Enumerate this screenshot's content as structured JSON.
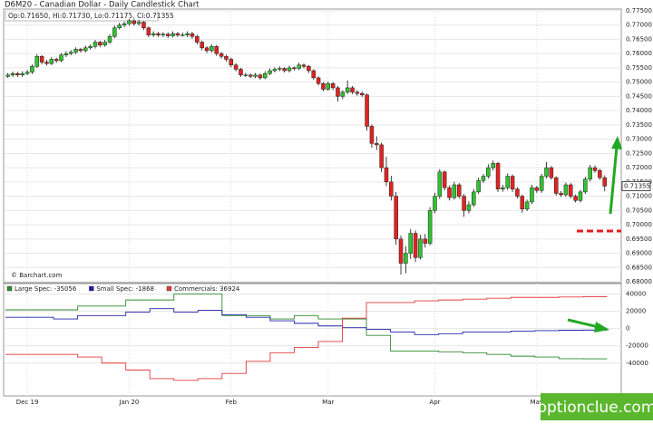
{
  "chart_data": [
    {
      "type": "candlestick",
      "title": "D6M20 - Canadian Dollar - Daily Candlestick Chart",
      "ohlc_label": "Op:0.71650, Hi:0.71730, Lo:0.71175, Cl:0.71355",
      "source": "© Barchart.com",
      "watermark": "optionclue.com",
      "last_price": 0.71355,
      "up_color": "#2fc42f",
      "down_color": "#e32222",
      "grid": true,
      "ylim": [
        0.6797,
        0.7756
      ],
      "yticks": [
        {
          "value": 0.68,
          "label": "0.68000"
        },
        {
          "value": 0.685,
          "label": "0.68500"
        },
        {
          "value": 0.69,
          "label": "0.69000"
        },
        {
          "value": 0.695,
          "label": "0.69500"
        },
        {
          "value": 0.7,
          "label": "0.70000"
        },
        {
          "value": 0.705,
          "label": "0.70500"
        },
        {
          "value": 0.71,
          "label": "0.71000"
        },
        {
          "value": 0.715,
          "label": "0.71500"
        },
        {
          "value": 0.72,
          "label": "0.72000"
        },
        {
          "value": 0.725,
          "label": "0.72500"
        },
        {
          "value": 0.73,
          "label": "0.73000"
        },
        {
          "value": 0.735,
          "label": "0.73500"
        },
        {
          "value": 0.74,
          "label": "0.74000"
        },
        {
          "value": 0.745,
          "label": "0.74500"
        },
        {
          "value": 0.75,
          "label": "0.75000"
        },
        {
          "value": 0.755,
          "label": "0.75500"
        },
        {
          "value": 0.76,
          "label": "0.76000"
        },
        {
          "value": 0.765,
          "label": "0.76500"
        },
        {
          "value": 0.77,
          "label": "0.77000"
        },
        {
          "value": 0.775,
          "label": "0.77500"
        }
      ],
      "categories": [
        null,
        null,
        null,
        null,
        "Dec 19",
        null,
        null,
        null,
        null,
        null,
        null,
        null,
        null,
        null,
        null,
        null,
        null,
        null,
        null,
        null,
        null,
        null,
        null,
        null,
        null,
        "Jan 20",
        null,
        null,
        null,
        null,
        null,
        null,
        null,
        null,
        null,
        null,
        null,
        null,
        null,
        null,
        null,
        null,
        null,
        null,
        null,
        null,
        "Feb",
        null,
        null,
        null,
        null,
        null,
        null,
        null,
        null,
        null,
        null,
        null,
        null,
        null,
        null,
        null,
        null,
        null,
        null,
        null,
        "Mar",
        null,
        null,
        null,
        null,
        null,
        null,
        null,
        null,
        null,
        null,
        null,
        null,
        null,
        null,
        null,
        null,
        null,
        null,
        null,
        null,
        null,
        "Apr",
        null,
        null,
        null,
        null,
        null,
        null,
        null,
        null,
        null,
        null,
        null,
        null,
        null,
        null,
        null,
        null,
        null,
        null,
        null,
        null,
        "May",
        null,
        null,
        null,
        null,
        null,
        null,
        null,
        null,
        null,
        null,
        null,
        null,
        null,
        null
      ],
      "candles": [
        [
          0.752,
          0.7532,
          0.7515,
          0.7525
        ],
        [
          0.7525,
          0.7537,
          0.7518,
          0.753
        ],
        [
          0.753,
          0.7536,
          0.7518,
          0.7525
        ],
        [
          0.7525,
          0.7538,
          0.7518,
          0.753
        ],
        [
          0.753,
          0.7542,
          0.7524,
          0.7535
        ],
        [
          0.7535,
          0.7562,
          0.7528,
          0.7555
        ],
        [
          0.7555,
          0.7598,
          0.755,
          0.759
        ],
        [
          0.759,
          0.7595,
          0.7562,
          0.757
        ],
        [
          0.757,
          0.7578,
          0.7558,
          0.7565
        ],
        [
          0.7565,
          0.7588,
          0.756,
          0.758
        ],
        [
          0.758,
          0.7586,
          0.7568,
          0.7575
        ],
        [
          0.7575,
          0.7602,
          0.757,
          0.7595
        ],
        [
          0.7595,
          0.7608,
          0.7588,
          0.76
        ],
        [
          0.76,
          0.7612,
          0.7594,
          0.7605
        ],
        [
          0.7605,
          0.7622,
          0.7598,
          0.7615
        ],
        [
          0.7615,
          0.762,
          0.7604,
          0.761
        ],
        [
          0.761,
          0.7628,
          0.7604,
          0.762
        ],
        [
          0.762,
          0.7632,
          0.7614,
          0.7625
        ],
        [
          0.7625,
          0.7648,
          0.7618,
          0.764
        ],
        [
          0.764,
          0.7645,
          0.7622,
          0.763
        ],
        [
          0.763,
          0.7648,
          0.7624,
          0.764
        ],
        [
          0.764,
          0.7668,
          0.7634,
          0.766
        ],
        [
          0.766,
          0.7698,
          0.7654,
          0.769
        ],
        [
          0.769,
          0.7708,
          0.7684,
          0.77
        ],
        [
          0.77,
          0.7712,
          0.7692,
          0.7705
        ],
        [
          0.7705,
          0.7722,
          0.7698,
          0.7715
        ],
        [
          0.7715,
          0.772,
          0.7698,
          0.7705
        ],
        [
          0.7705,
          0.7718,
          0.7698,
          0.771
        ],
        [
          0.771,
          0.7714,
          0.7682,
          0.769
        ],
        [
          0.769,
          0.7695,
          0.7658,
          0.7665
        ],
        [
          0.7665,
          0.7678,
          0.7658,
          0.767
        ],
        [
          0.767,
          0.7676,
          0.7658,
          0.7665
        ],
        [
          0.7665,
          0.7675,
          0.7658,
          0.7668
        ],
        [
          0.7668,
          0.7674,
          0.7655,
          0.7662
        ],
        [
          0.7662,
          0.7678,
          0.7656,
          0.767
        ],
        [
          0.767,
          0.7676,
          0.7658,
          0.7665
        ],
        [
          0.7665,
          0.7674,
          0.766,
          0.7665
        ],
        [
          0.7665,
          0.7678,
          0.7658,
          0.767
        ],
        [
          0.767,
          0.7676,
          0.7652,
          0.766
        ],
        [
          0.766,
          0.7666,
          0.7632,
          0.764
        ],
        [
          0.764,
          0.7646,
          0.7612,
          0.762
        ],
        [
          0.762,
          0.7626,
          0.7602,
          0.761
        ],
        [
          0.761,
          0.7632,
          0.7604,
          0.7625
        ],
        [
          0.7625,
          0.763,
          0.7592,
          0.76
        ],
        [
          0.76,
          0.7606,
          0.7582,
          0.759
        ],
        [
          0.759,
          0.7596,
          0.7572,
          0.758
        ],
        [
          0.758,
          0.7586,
          0.7552,
          0.756
        ],
        [
          0.756,
          0.7566,
          0.7538,
          0.7545
        ],
        [
          0.7545,
          0.755,
          0.7518,
          0.7525
        ],
        [
          0.7525,
          0.7532,
          0.7518,
          0.7525
        ],
        [
          0.7525,
          0.753,
          0.7514,
          0.752
        ],
        [
          0.752,
          0.7532,
          0.7514,
          0.7525
        ],
        [
          0.7525,
          0.753,
          0.7508,
          0.7515
        ],
        [
          0.7515,
          0.7538,
          0.751,
          0.753
        ],
        [
          0.753,
          0.7548,
          0.7524,
          0.754
        ],
        [
          0.754,
          0.7552,
          0.7534,
          0.7545
        ],
        [
          0.7545,
          0.7555,
          0.7538,
          0.7548
        ],
        [
          0.7548,
          0.7552,
          0.7534,
          0.754
        ],
        [
          0.754,
          0.7558,
          0.7534,
          0.755
        ],
        [
          0.755,
          0.7555,
          0.754,
          0.7548
        ],
        [
          0.7548,
          0.7568,
          0.7542,
          0.756
        ],
        [
          0.756,
          0.7565,
          0.7548,
          0.7555
        ],
        [
          0.7555,
          0.756,
          0.7532,
          0.754
        ],
        [
          0.754,
          0.7545,
          0.7508,
          0.7515
        ],
        [
          0.7515,
          0.752,
          0.7488,
          0.7495
        ],
        [
          0.7495,
          0.75,
          0.7468,
          0.7475
        ],
        [
          0.7475,
          0.7502,
          0.747,
          0.7495
        ],
        [
          0.7495,
          0.75,
          0.7472,
          0.748
        ],
        [
          0.748,
          0.7486,
          0.7432,
          0.745
        ],
        [
          0.745,
          0.7472,
          0.744,
          0.7465
        ],
        [
          0.7465,
          0.7506,
          0.7458,
          0.748
        ],
        [
          0.748,
          0.7486,
          0.7458,
          0.7465
        ],
        [
          0.7465,
          0.7472,
          0.7452,
          0.746
        ],
        [
          0.746,
          0.7468,
          0.7448,
          0.7455
        ],
        [
          0.7455,
          0.746,
          0.733,
          0.7345
        ],
        [
          0.7345,
          0.7352,
          0.727,
          0.7285
        ],
        [
          0.7285,
          0.731,
          0.7262,
          0.728
        ],
        [
          0.728,
          0.7288,
          0.7185,
          0.72
        ],
        [
          0.72,
          0.7238,
          0.7135,
          0.715
        ],
        [
          0.715,
          0.7172,
          0.7085,
          0.71
        ],
        [
          0.71,
          0.7115,
          0.693,
          0.695
        ],
        [
          0.695,
          0.6962,
          0.6825,
          0.6865
        ],
        [
          0.6865,
          0.6925,
          0.683,
          0.69
        ],
        [
          0.69,
          0.6985,
          0.688,
          0.697
        ],
        [
          0.697,
          0.698,
          0.687,
          0.6885
        ],
        [
          0.6885,
          0.6965,
          0.6878,
          0.695
        ],
        [
          0.695,
          0.6968,
          0.692,
          0.6935
        ],
        [
          0.6935,
          0.7062,
          0.6928,
          0.705
        ],
        [
          0.705,
          0.7112,
          0.704,
          0.71
        ],
        [
          0.71,
          0.7195,
          0.709,
          0.7185
        ],
        [
          0.7185,
          0.719,
          0.712,
          0.713
        ],
        [
          0.713,
          0.7138,
          0.7085,
          0.7095
        ],
        [
          0.7095,
          0.715,
          0.7088,
          0.714
        ],
        [
          0.714,
          0.7146,
          0.7092,
          0.71
        ],
        [
          0.71,
          0.7108,
          0.7028,
          0.705
        ],
        [
          0.705,
          0.7082,
          0.704,
          0.707
        ],
        [
          0.707,
          0.7125,
          0.7062,
          0.7115
        ],
        [
          0.7115,
          0.7165,
          0.7108,
          0.7155
        ],
        [
          0.7155,
          0.7178,
          0.7146,
          0.717
        ],
        [
          0.717,
          0.7212,
          0.7162,
          0.72
        ],
        [
          0.72,
          0.7225,
          0.719,
          0.7215
        ],
        [
          0.7215,
          0.722,
          0.7115,
          0.7125
        ],
        [
          0.7125,
          0.714,
          0.7116,
          0.713
        ],
        [
          0.713,
          0.718,
          0.7122,
          0.717
        ],
        [
          0.717,
          0.7176,
          0.7115,
          0.7125
        ],
        [
          0.7125,
          0.7132,
          0.7092,
          0.71
        ],
        [
          0.71,
          0.7106,
          0.7042,
          0.7055
        ],
        [
          0.7055,
          0.7088,
          0.7048,
          0.708
        ],
        [
          0.708,
          0.714,
          0.7072,
          0.713
        ],
        [
          0.713,
          0.7136,
          0.7112,
          0.712
        ],
        [
          0.712,
          0.7178,
          0.7112,
          0.717
        ],
        [
          0.717,
          0.722,
          0.7162,
          0.72
        ],
        [
          0.72,
          0.7206,
          0.7158,
          0.7165
        ],
        [
          0.7165,
          0.717,
          0.7102,
          0.711
        ],
        [
          0.711,
          0.7118,
          0.7098,
          0.7105
        ],
        [
          0.7105,
          0.7148,
          0.7098,
          0.714
        ],
        [
          0.714,
          0.7146,
          0.7092,
          0.71
        ],
        [
          0.71,
          0.7106,
          0.7078,
          0.7085
        ],
        [
          0.7085,
          0.7122,
          0.7078,
          0.7115
        ],
        [
          0.7115,
          0.7168,
          0.7108,
          0.716
        ],
        [
          0.716,
          0.721,
          0.7152,
          0.72
        ],
        [
          0.72,
          0.7208,
          0.7182,
          0.719
        ],
        [
          0.719,
          0.7196,
          0.7158,
          0.7165
        ],
        [
          0.7165,
          0.7173,
          0.71175,
          0.71355
        ]
      ]
    },
    {
      "type": "step",
      "ylim": [
        -78000,
        52000
      ],
      "yticks": [
        -40000,
        -20000,
        0,
        20000,
        40000
      ],
      "grid": true,
      "categories": [
        null,
        null,
        null,
        null,
        null,
        null,
        null,
        null,
        null,
        null,
        null,
        null,
        null,
        null,
        null,
        null,
        null,
        null,
        null,
        null,
        null,
        null,
        null,
        null,
        null
      ],
      "series": [
        {
          "name": "Large Spec: -35056",
          "color": "#2e8b2e",
          "values": [
            21600,
            21600,
            21600,
            26000,
            26000,
            33000,
            33000,
            40000,
            40000,
            15000,
            15000,
            11000,
            15000,
            11000,
            11000,
            -8000,
            -26000,
            -26000,
            -27000,
            -28000,
            -30000,
            -32000,
            -33000,
            -35000,
            -35056
          ]
        },
        {
          "name": "Small Spec: -1868",
          "color": "#2323a8",
          "values": [
            13000,
            13000,
            11000,
            15000,
            15000,
            19000,
            23000,
            19000,
            21000,
            16000,
            13000,
            9000,
            6000,
            3000,
            1000,
            -1000,
            -4000,
            -7000,
            -6000,
            -4000,
            -4000,
            -3000,
            -2500,
            -2000,
            -1868
          ]
        },
        {
          "name": "Commercials: 36924",
          "color": "#e03a3a",
          "values": [
            -30000,
            -30000,
            -30000,
            -33000,
            -40000,
            -48000,
            -58000,
            -60000,
            -58000,
            -52000,
            -38000,
            -28000,
            -22000,
            -15000,
            12000,
            30000,
            30000,
            32000,
            33000,
            34000,
            35000,
            36000,
            36000,
            36500,
            36924
          ]
        }
      ]
    }
  ]
}
